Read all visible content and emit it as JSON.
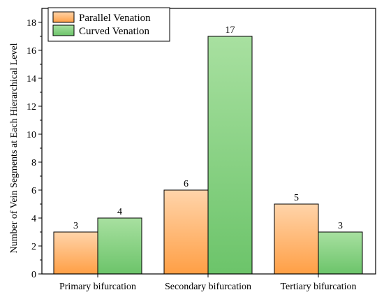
{
  "chart_data": {
    "type": "bar",
    "title": "",
    "xlabel": "",
    "ylabel": "Number of Vein Segments at Each Hierarchical Level",
    "categories": [
      "Primary bifurcation",
      "Secondary bifurcation",
      "Tertiary bifurcation"
    ],
    "series": [
      {
        "name": "Parallel Venation",
        "values": [
          3,
          6,
          5
        ],
        "color_top": "#ffd4aa",
        "color_bottom": "#ff9f45"
      },
      {
        "name": "Curved Venation",
        "values": [
          4,
          17,
          3
        ],
        "color_top": "#a8e0a0",
        "color_bottom": "#6cc46a"
      }
    ],
    "ylim": [
      0,
      19
    ],
    "yticks": [
      0,
      2,
      4,
      6,
      8,
      10,
      12,
      14,
      16,
      18
    ],
    "grid": false,
    "legend_position": "top-left",
    "data_labels": true
  }
}
